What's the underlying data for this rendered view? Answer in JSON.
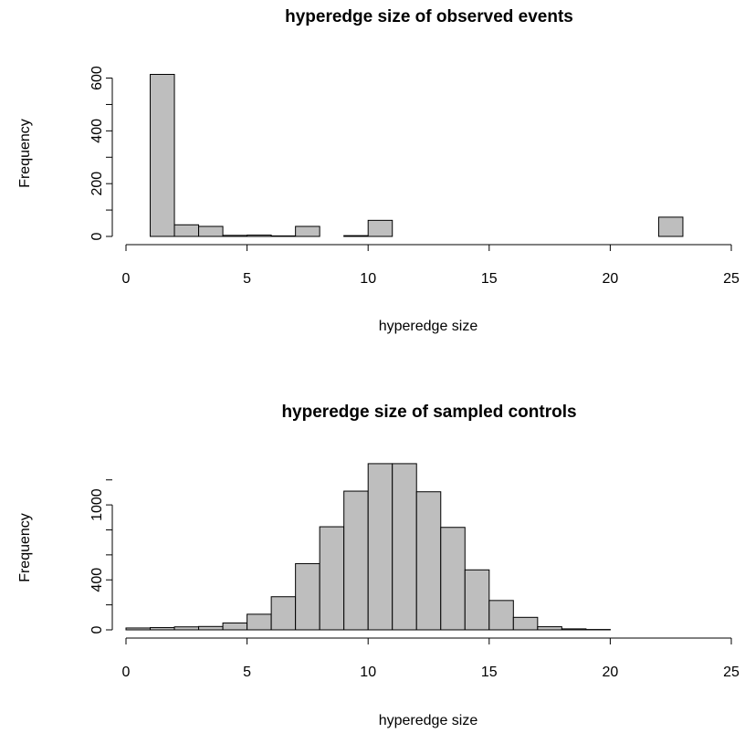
{
  "chart_data": [
    {
      "type": "bar",
      "title": "hyperedge size of observed events",
      "xlabel": "hyperedge size",
      "ylabel": "Frequency",
      "xlim": [
        0,
        25
      ],
      "ylim": [
        0,
        620
      ],
      "x_ticks": [
        "0",
        "5",
        "10",
        "15",
        "20",
        "25"
      ],
      "y_ticks": [
        "0",
        "200",
        "400",
        "600"
      ],
      "bin_edges": [
        1,
        2,
        3,
        4,
        5,
        6,
        7,
        8,
        9,
        10,
        11,
        12,
        13,
        14,
        15,
        16,
        17,
        18,
        19,
        20,
        21,
        22,
        23
      ],
      "values": [
        614,
        44,
        38,
        4,
        5,
        2,
        38,
        0,
        3,
        61,
        0,
        0,
        0,
        0,
        0,
        0,
        0,
        0,
        0,
        0,
        0,
        73
      ],
      "grid": false,
      "bar_color": "#bebebe"
    },
    {
      "type": "bar",
      "title": "hyperedge size of sampled controls",
      "xlabel": "hyperedge size",
      "ylabel": "Frequency",
      "xlim": [
        0,
        25
      ],
      "ylim": [
        0,
        1350
      ],
      "x_ticks": [
        "0",
        "5",
        "10",
        "15",
        "20",
        "25"
      ],
      "y_ticks": [
        "0",
        "400",
        "1000"
      ],
      "bin_edges": [
        0,
        1,
        2,
        3,
        4,
        5,
        6,
        7,
        8,
        9,
        10,
        11,
        12,
        13,
        14,
        15,
        16,
        17,
        18,
        19,
        20
      ],
      "values": [
        15,
        18,
        24,
        27,
        55,
        125,
        265,
        530,
        825,
        1110,
        1330,
        1330,
        1105,
        820,
        480,
        235,
        100,
        25,
        8,
        3
      ],
      "grid": false,
      "bar_color": "#bebebe"
    }
  ]
}
